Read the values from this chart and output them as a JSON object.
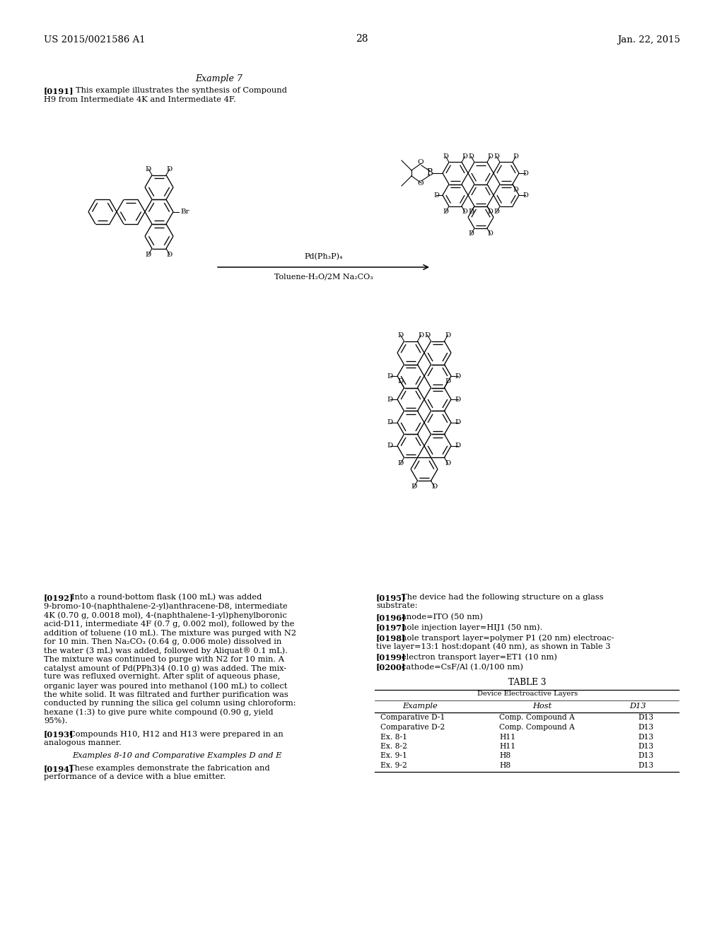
{
  "page_header_left": "US 2015/0021586 A1",
  "page_header_right": "Jan. 22, 2015",
  "page_number": "28",
  "example_title": "Example 7",
  "reaction_reagent1": "Pd(Ph₃P)₄",
  "reaction_reagent2": "Toluene-H₂O/2M Na₂CO₃",
  "table_title": "TABLE 3",
  "table_subtitle": "Device Electroactive Layers",
  "table_headers": [
    "Example",
    "Host",
    "D13"
  ],
  "table_rows": [
    [
      "Comparative D-1",
      "Comp. Compound A",
      "D13"
    ],
    [
      "Comparative D-2",
      "Comp. Compound A",
      "D13"
    ],
    [
      "Ex. 8-1",
      "H11",
      "D13"
    ],
    [
      "Ex. 8-2",
      "H11",
      "D13"
    ],
    [
      "Ex. 9-1",
      "H8",
      "D13"
    ],
    [
      "Ex. 9-2",
      "H8",
      "D13"
    ]
  ],
  "bg_color": "#ffffff",
  "font_size_body": 8.2,
  "lh": 12.5
}
